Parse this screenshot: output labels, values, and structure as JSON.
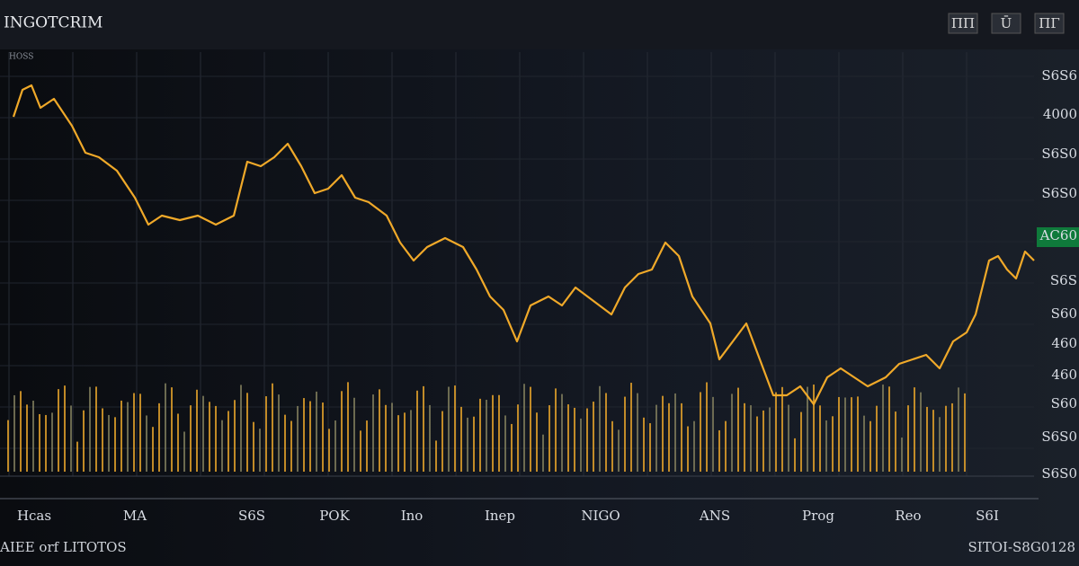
{
  "header": {
    "title": "INGOTCRIM",
    "subtitle": "HOSS",
    "tools": [
      "ΠΠ",
      "Ū",
      "ΠΓ"
    ]
  },
  "y_axis_labels": [
    "S6S6",
    "4000",
    "S6S0",
    "S6S0",
    "AC60",
    "S6S",
    "S60",
    "460",
    "460",
    "S60",
    "S6S0",
    "S6S0"
  ],
  "x_axis_labels": [
    "Hcas",
    "MA",
    "S6S",
    "POK",
    "Ino",
    "Inep",
    "NIGO",
    "ANS",
    "Prog",
    "Reo",
    "S6I"
  ],
  "footer": {
    "left": "AIEE orf LITOTOS",
    "right": "SITOI-S8G0128"
  }
}
